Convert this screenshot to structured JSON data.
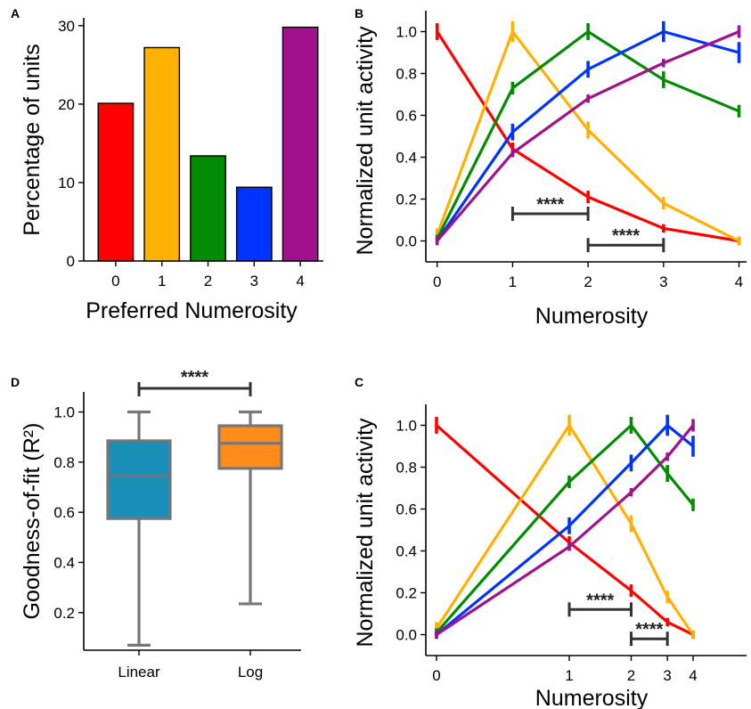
{
  "chart_data": [
    {
      "panel": "A",
      "type": "bar",
      "categories": [
        "0",
        "1",
        "2",
        "3",
        "4"
      ],
      "values": [
        20.1,
        27.2,
        13.4,
        9.4,
        29.8
      ],
      "colors": [
        "#ff0000",
        "#ffb000",
        "#008c00",
        "#0033ff",
        "#a0128c"
      ],
      "xlabel": "Preferred Numerosity",
      "ylabel": "Percentage of units",
      "ylim": [
        0,
        31
      ],
      "yticks": [
        0,
        10,
        20,
        30
      ],
      "grid": false
    },
    {
      "panel": "B",
      "type": "line",
      "x": [
        0,
        1,
        2,
        3,
        4
      ],
      "xscale": "linear",
      "xticks": [
        0,
        1,
        2,
        3,
        4
      ],
      "series": [
        {
          "color": "#ff0000",
          "values": [
            1.0,
            0.44,
            0.21,
            0.06,
            0.0
          ],
          "err": [
            0.04,
            0.03,
            0.03,
            0.02,
            0.02
          ]
        },
        {
          "color": "#ffb000",
          "values": [
            0.03,
            1.0,
            0.53,
            0.18,
            0.0
          ],
          "err": [
            0.03,
            0.05,
            0.04,
            0.03,
            0.02
          ]
        },
        {
          "color": "#008c00",
          "values": [
            0.01,
            0.73,
            1.0,
            0.77,
            0.62
          ],
          "err": [
            0.02,
            0.03,
            0.04,
            0.04,
            0.03
          ]
        },
        {
          "color": "#0033ff",
          "values": [
            0.0,
            0.52,
            0.82,
            1.0,
            0.9
          ],
          "err": [
            0.02,
            0.04,
            0.04,
            0.05,
            0.05
          ]
        },
        {
          "color": "#a0128c",
          "values": [
            0.0,
            0.42,
            0.68,
            0.85,
            1.0
          ],
          "err": [
            0.02,
            0.02,
            0.02,
            0.02,
            0.03
          ]
        }
      ],
      "significance": [
        {
          "x1": 1,
          "x2": 2,
          "y": 0.13,
          "label": "****"
        },
        {
          "x1": 2,
          "x2": 3,
          "y": -0.02,
          "label": "****"
        }
      ],
      "xlabel": "Numerosity",
      "ylabel": "Normalized unit activity",
      "xlim": [
        -0.15,
        4.1
      ],
      "ylim": [
        -0.1,
        1.1
      ],
      "yticks": [
        0.0,
        0.2,
        0.4,
        0.6,
        0.8,
        1.0
      ],
      "grid": false
    },
    {
      "panel": "D",
      "type": "box",
      "categories": [
        "Linear",
        "Log"
      ],
      "boxes": [
        {
          "min": 0.07,
          "q1": 0.575,
          "median": 0.745,
          "q3": 0.885,
          "max": 1.0,
          "fill": "#1a8fb8"
        },
        {
          "min": 0.235,
          "q1": 0.775,
          "median": 0.875,
          "q3": 0.945,
          "max": 1.0,
          "fill": "#ff8c1a"
        }
      ],
      "significance": {
        "label": "****"
      },
      "ylabel": "Goodness-of-fit (R²)",
      "ylim": [
        0.05,
        1.08
      ],
      "yticks": [
        0.2,
        0.4,
        0.6,
        0.8,
        1.0
      ],
      "grid": false
    },
    {
      "panel": "C",
      "type": "line",
      "x": [
        0,
        1,
        2,
        3,
        4
      ],
      "xscale": "log",
      "xticks": [
        0,
        1,
        2,
        3,
        4
      ],
      "series": [
        {
          "color": "#ff0000",
          "values": [
            1.0,
            0.44,
            0.21,
            0.06,
            0.0
          ],
          "err": [
            0.04,
            0.03,
            0.03,
            0.02,
            0.02
          ]
        },
        {
          "color": "#ffb000",
          "values": [
            0.03,
            1.0,
            0.53,
            0.18,
            0.0
          ],
          "err": [
            0.03,
            0.05,
            0.04,
            0.03,
            0.02
          ]
        },
        {
          "color": "#008c00",
          "values": [
            0.01,
            0.73,
            1.0,
            0.77,
            0.62
          ],
          "err": [
            0.02,
            0.03,
            0.04,
            0.04,
            0.03
          ]
        },
        {
          "color": "#0033ff",
          "values": [
            0.0,
            0.52,
            0.82,
            1.0,
            0.9
          ],
          "err": [
            0.02,
            0.04,
            0.04,
            0.05,
            0.05
          ]
        },
        {
          "color": "#a0128c",
          "values": [
            0.0,
            0.42,
            0.68,
            0.85,
            1.0
          ],
          "err": [
            0.02,
            0.02,
            0.02,
            0.02,
            0.03
          ]
        }
      ],
      "significance": [
        {
          "x1": 1,
          "x2": 2,
          "y": 0.12,
          "label": "****"
        },
        {
          "x1": 2,
          "x2": 3,
          "y": -0.02,
          "label": "****"
        }
      ],
      "xlabel": "Numerosity",
      "ylabel": "Normalized unit activity",
      "ylim": [
        -0.1,
        1.1
      ],
      "yticks": [
        0.0,
        0.2,
        0.4,
        0.6,
        0.8,
        1.0
      ],
      "grid": false
    }
  ]
}
